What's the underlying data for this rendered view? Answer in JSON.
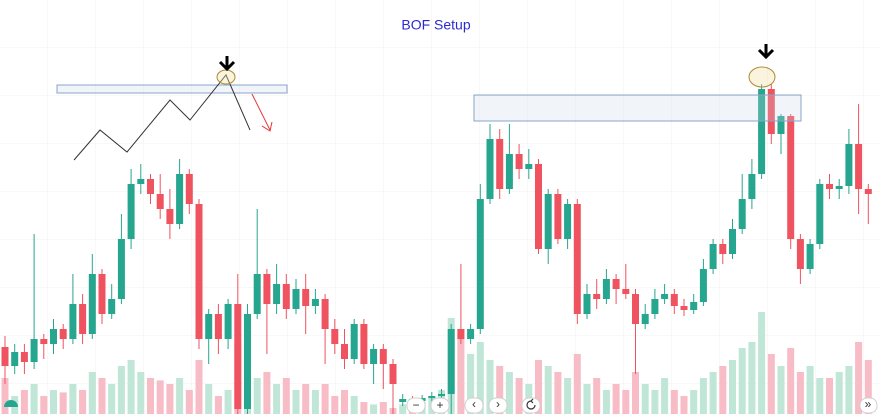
{
  "chart_data": {
    "type": "candlestick",
    "title": "BOF Setup",
    "open": [
      67,
      48,
      62,
      52,
      75,
      70,
      85,
      75,
      110,
      80,
      140,
      100,
      115,
      175,
      230,
      235,
      220,
      205,
      190,
      240,
      210,
      75,
      100,
      75,
      110,
      5,
      100,
      140,
      110,
      130,
      105,
      125,
      108,
      115,
      85,
      70,
      55,
      90,
      50,
      65,
      50,
      12,
      15,
      13,
      16,
      18,
      20,
      85,
      75,
      85,
      215,
      275,
      225,
      260,
      245,
      250,
      165,
      220,
      175,
      210,
      100,
      120,
      115,
      135,
      125,
      120,
      90,
      100,
      115,
      120,
      108,
      104,
      112,
      145,
      170,
      160,
      185,
      215,
      240,
      325,
      280,
      298,
      175,
      145,
      170,
      230,
      225,
      228,
      270,
      225
    ],
    "high": [
      78,
      70,
      70,
      180,
      80,
      95,
      90,
      140,
      120,
      160,
      145,
      130,
      200,
      245,
      250,
      240,
      240,
      225,
      255,
      245,
      215,
      105,
      110,
      115,
      140,
      110,
      205,
      145,
      150,
      140,
      135,
      140,
      125,
      120,
      95,
      85,
      95,
      95,
      70,
      70,
      55,
      20,
      18,
      19,
      22,
      25,
      90,
      150,
      90,
      230,
      290,
      285,
      290,
      270,
      265,
      255,
      225,
      225,
      215,
      215,
      130,
      135,
      145,
      140,
      150,
      125,
      110,
      125,
      130,
      125,
      115,
      120,
      155,
      175,
      175,
      195,
      240,
      255,
      330,
      330,
      300,
      300,
      180,
      175,
      235,
      240,
      235,
      285,
      310,
      230
    ],
    "low": [
      30,
      40,
      40,
      45,
      55,
      60,
      65,
      70,
      70,
      75,
      90,
      95,
      110,
      165,
      220,
      210,
      195,
      175,
      185,
      200,
      65,
      50,
      60,
      65,
      0,
      0,
      95,
      60,
      100,
      95,
      100,
      80,
      100,
      50,
      60,
      45,
      50,
      45,
      30,
      25,
      0,
      8,
      10,
      10,
      12,
      15,
      0,
      70,
      70,
      80,
      210,
      215,
      220,
      235,
      235,
      160,
      150,
      170,
      165,
      90,
      95,
      105,
      110,
      110,
      115,
      40,
      85,
      95,
      110,
      100,
      98,
      100,
      108,
      140,
      150,
      155,
      180,
      205,
      235,
      270,
      260,
      165,
      130,
      140,
      165,
      215,
      215,
      220,
      200,
      190
    ],
    "close": [
      48,
      62,
      52,
      75,
      70,
      85,
      75,
      110,
      80,
      140,
      100,
      115,
      175,
      230,
      235,
      220,
      205,
      190,
      240,
      210,
      75,
      100,
      75,
      110,
      5,
      100,
      140,
      110,
      130,
      105,
      125,
      108,
      115,
      85,
      70,
      55,
      90,
      50,
      65,
      50,
      30,
      15,
      13,
      16,
      18,
      20,
      85,
      75,
      85,
      215,
      275,
      225,
      260,
      245,
      250,
      165,
      220,
      175,
      210,
      100,
      120,
      115,
      135,
      125,
      120,
      90,
      100,
      115,
      120,
      108,
      104,
      112,
      145,
      170,
      160,
      185,
      215,
      240,
      325,
      280,
      298,
      175,
      145,
      170,
      230,
      225,
      228,
      270,
      225,
      220
    ],
    "volume": [
      30,
      15,
      20,
      25,
      15,
      20,
      18,
      25,
      20,
      35,
      30,
      25,
      40,
      45,
      35,
      30,
      28,
      25,
      30,
      20,
      45,
      25,
      15,
      20,
      60,
      40,
      30,
      35,
      25,
      30,
      20,
      25,
      20,
      25,
      15,
      20,
      15,
      10,
      8,
      10,
      5,
      8,
      6,
      10,
      15,
      20,
      80,
      70,
      50,
      60,
      45,
      40,
      35,
      30,
      25,
      45,
      40,
      35,
      30,
      50,
      25,
      30,
      20,
      25,
      20,
      35,
      25,
      20,
      30,
      20,
      15,
      20,
      30,
      35,
      40,
      45,
      55,
      60,
      85,
      50,
      40,
      55,
      35,
      40,
      30,
      30,
      35,
      40,
      60,
      45
    ],
    "ylim": [
      0,
      414
    ],
    "volume_lim": [
      0,
      100
    ],
    "up_color": "#26a68e",
    "down_color": "#ef5360",
    "volume_up_color": "#bfe6d6",
    "volume_down_color": "#f7bcc5",
    "title_color": "#2a2ad0"
  },
  "toolbar": [
    "−",
    "+",
    "‹",
    "›",
    "»"
  ]
}
